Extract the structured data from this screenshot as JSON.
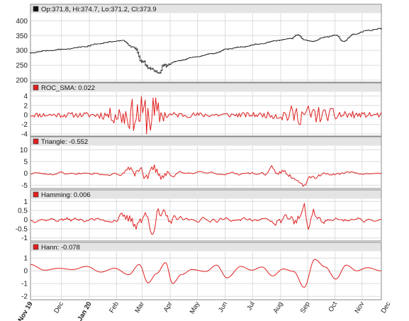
{
  "colors": {
    "price": "#111111",
    "indicator": "#e02020",
    "grid": "#dcdcdc",
    "header": "#e4e4e4"
  },
  "chart_data": [
    {
      "type": "ohlc",
      "legend_label": "Op:371.8, Hi:374.7, Lo:371.2, Cl:373.9",
      "legend_color": "#111111",
      "ylim": [
        200,
        420
      ],
      "yticks": [
        200,
        250,
        300,
        350,
        400
      ],
      "grid": true,
      "anchors": [
        {
          "t": 0,
          "close": 292
        },
        {
          "t": 0.05,
          "close": 300
        },
        {
          "t": 0.1,
          "close": 305
        },
        {
          "t": 0.15,
          "close": 312
        },
        {
          "t": 0.19,
          "close": 322
        },
        {
          "t": 0.23,
          "close": 330
        },
        {
          "t": 0.26,
          "close": 334
        },
        {
          "t": 0.29,
          "close": 312
        },
        {
          "t": 0.32,
          "close": 262
        },
        {
          "t": 0.34,
          "close": 240
        },
        {
          "t": 0.365,
          "close": 225
        },
        {
          "t": 0.38,
          "close": 248
        },
        {
          "t": 0.42,
          "close": 265
        },
        {
          "t": 0.47,
          "close": 278
        },
        {
          "t": 0.52,
          "close": 290
        },
        {
          "t": 0.56,
          "close": 305
        },
        {
          "t": 0.6,
          "close": 312
        },
        {
          "t": 0.65,
          "close": 322
        },
        {
          "t": 0.7,
          "close": 333
        },
        {
          "t": 0.74,
          "close": 340
        },
        {
          "t": 0.76,
          "close": 353
        },
        {
          "t": 0.78,
          "close": 335
        },
        {
          "t": 0.8,
          "close": 330
        },
        {
          "t": 0.84,
          "close": 345
        },
        {
          "t": 0.87,
          "close": 352
        },
        {
          "t": 0.89,
          "close": 330
        },
        {
          "t": 0.92,
          "close": 355
        },
        {
          "t": 0.96,
          "close": 367
        },
        {
          "t": 1.0,
          "close": 374
        }
      ]
    },
    {
      "type": "line",
      "legend_label": "ROC_SMA: 0.022",
      "legend_color": "#e02020",
      "ylim": [
        -4,
        4.5
      ],
      "yticks": [
        -4,
        -2,
        0,
        2,
        4
      ],
      "grid": true,
      "smooth": 1,
      "amp_base": 0.55,
      "seed": 11,
      "bursts": [
        {
          "t": 0.29,
          "w": 0.06,
          "a": 2.8
        },
        {
          "t": 0.345,
          "w": 0.03,
          "a": 3.0
        },
        {
          "t": 0.74,
          "w": 0.04,
          "a": 1.2
        },
        {
          "t": 0.8,
          "w": 0.04,
          "a": 1.6
        },
        {
          "t": 0.88,
          "w": 0.03,
          "a": 1.2
        }
      ]
    },
    {
      "type": "line",
      "legend_label": "Triangle: -0.552",
      "legend_color": "#e02020",
      "ylim": [
        -5.5,
        11
      ],
      "yticks": [
        -5,
        0,
        5,
        10
      ],
      "grid": true,
      "smooth": 3,
      "amp_base": 0.9,
      "seed": 23,
      "bursts": [
        {
          "t": 0.31,
          "w": 0.05,
          "a": 3.5
        },
        {
          "t": 0.37,
          "w": 0.03,
          "a": 4.5
        },
        {
          "t": 0.72,
          "w": 0.05,
          "a": 2.5
        },
        {
          "t": 0.79,
          "w": 0.04,
          "a": 3.5
        }
      ]
    },
    {
      "type": "line",
      "legend_label": "Hamming: 0.006",
      "legend_color": "#e02020",
      "ylim": [
        -1.05,
        1.05
      ],
      "yticks": [
        -1.0,
        -0.5,
        0.0,
        0.5,
        1.0
      ],
      "grid": true,
      "smooth": 2,
      "amp_base": 0.12,
      "seed": 37,
      "bursts": [
        {
          "t": 0.3,
          "w": 0.05,
          "a": 0.35
        },
        {
          "t": 0.36,
          "w": 0.04,
          "a": 0.5
        },
        {
          "t": 0.73,
          "w": 0.04,
          "a": 0.3
        },
        {
          "t": 0.79,
          "w": 0.04,
          "a": 0.45
        }
      ]
    },
    {
      "type": "line",
      "legend_label": "Hann: -0.078",
      "legend_color": "#e02020",
      "ylim": [
        -2.1,
        1.4
      ],
      "yticks": [
        -2,
        -1,
        0,
        1
      ],
      "grid": true,
      "wave": [
        {
          "t": 0.0,
          "v": 0.5
        },
        {
          "t": 0.04,
          "v": 0.05
        },
        {
          "t": 0.08,
          "v": 0.2
        },
        {
          "t": 0.12,
          "v": 0.1
        },
        {
          "t": 0.16,
          "v": 0.35
        },
        {
          "t": 0.2,
          "v": -0.1
        },
        {
          "t": 0.24,
          "v": 0.2
        },
        {
          "t": 0.28,
          "v": -0.3
        },
        {
          "t": 0.31,
          "v": 0.5
        },
        {
          "t": 0.335,
          "v": -0.95
        },
        {
          "t": 0.36,
          "v": -0.2
        },
        {
          "t": 0.385,
          "v": 0.65
        },
        {
          "t": 0.405,
          "v": -1.0
        },
        {
          "t": 0.43,
          "v": -0.3
        },
        {
          "t": 0.46,
          "v": 0.1
        },
        {
          "t": 0.5,
          "v": -0.05
        },
        {
          "t": 0.53,
          "v": 0.45
        },
        {
          "t": 0.56,
          "v": -0.55
        },
        {
          "t": 0.6,
          "v": 0.35
        },
        {
          "t": 0.63,
          "v": 0.05
        },
        {
          "t": 0.66,
          "v": 0.3
        },
        {
          "t": 0.69,
          "v": -0.4
        },
        {
          "t": 0.72,
          "v": 0.15
        },
        {
          "t": 0.75,
          "v": -0.05
        },
        {
          "t": 0.78,
          "v": -1.3
        },
        {
          "t": 0.81,
          "v": 0.9
        },
        {
          "t": 0.84,
          "v": 0.3
        },
        {
          "t": 0.87,
          "v": -0.65
        },
        {
          "t": 0.9,
          "v": 0.45
        },
        {
          "t": 0.93,
          "v": 0.0
        },
        {
          "t": 0.96,
          "v": 0.25
        },
        {
          "t": 1.0,
          "v": 0.0
        }
      ]
    }
  ],
  "x_axis": {
    "labels": [
      {
        "t": 0.0,
        "label": "Nov 19",
        "bold": true
      },
      {
        "t": 0.088,
        "label": "Dec",
        "bold": false
      },
      {
        "t": 0.168,
        "label": "Jan 20",
        "bold": true
      },
      {
        "t": 0.245,
        "label": "Feb",
        "bold": false
      },
      {
        "t": 0.318,
        "label": "Mar",
        "bold": false
      },
      {
        "t": 0.398,
        "label": "Apr",
        "bold": false
      },
      {
        "t": 0.476,
        "label": "May",
        "bold": false
      },
      {
        "t": 0.555,
        "label": "Jun",
        "bold": false
      },
      {
        "t": 0.633,
        "label": "Jul",
        "bold": false
      },
      {
        "t": 0.713,
        "label": "Aug",
        "bold": false
      },
      {
        "t": 0.79,
        "label": "Sep",
        "bold": false
      },
      {
        "t": 0.868,
        "label": "Oct",
        "bold": false
      },
      {
        "t": 0.945,
        "label": "Nov",
        "bold": false
      },
      {
        "t": 1.02,
        "label": "Dec",
        "bold": false
      }
    ]
  }
}
